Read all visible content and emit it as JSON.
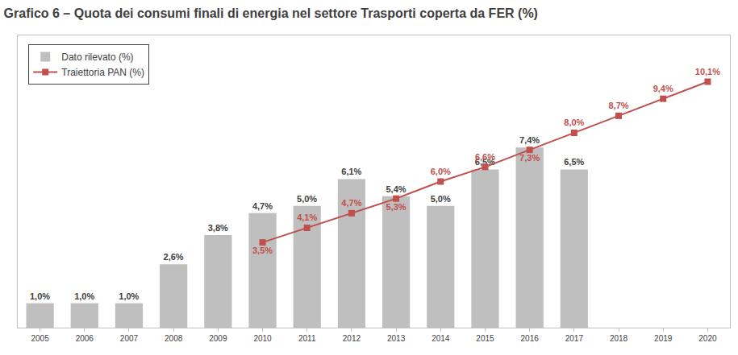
{
  "chart_data": {
    "type": "bar",
    "title": "Grafico 6 – Quota dei consumi finali di energia nel settore Trasporti coperta da FER (%)",
    "categories": [
      "2005",
      "2006",
      "2007",
      "2008",
      "2009",
      "2010",
      "2011",
      "2012",
      "2013",
      "2014",
      "2015",
      "2016",
      "2017",
      "2018",
      "2019",
      "2020"
    ],
    "series": [
      {
        "name": "Dato rilevato (%)",
        "type": "bar",
        "color": "#bfbfbf",
        "values": [
          1.0,
          1.0,
          1.0,
          2.6,
          3.8,
          4.7,
          5.0,
          6.1,
          5.4,
          5.0,
          6.5,
          7.4,
          6.5,
          null,
          null,
          null
        ],
        "value_labels": [
          "1,0%",
          "1,0%",
          "1,0%",
          "2,6%",
          "3,8%",
          "4,7%",
          "5,0%",
          "6,1%",
          "5,4%",
          "5,0%",
          "6,5%",
          "7,4%",
          "6,5%",
          null,
          null,
          null
        ]
      },
      {
        "name": "Traiettoria PAN (%)",
        "type": "line",
        "color": "#c0504d",
        "marker": "square",
        "values": [
          null,
          null,
          null,
          null,
          null,
          3.5,
          4.1,
          4.7,
          5.3,
          6.0,
          6.6,
          7.3,
          8.0,
          8.7,
          9.4,
          10.1
        ],
        "value_labels": [
          null,
          null,
          null,
          null,
          null,
          "3,5%",
          "4,1%",
          "4,7%",
          "5,3%",
          "6,0%",
          "6,6%",
          "7,3%",
          "8,0%",
          "8,7%",
          "9,4%",
          "10,1%"
        ]
      }
    ],
    "ylim": [
      0,
      12
    ],
    "tick_labels": "x",
    "grid": false,
    "legend": "upper left",
    "data_labels": true
  }
}
